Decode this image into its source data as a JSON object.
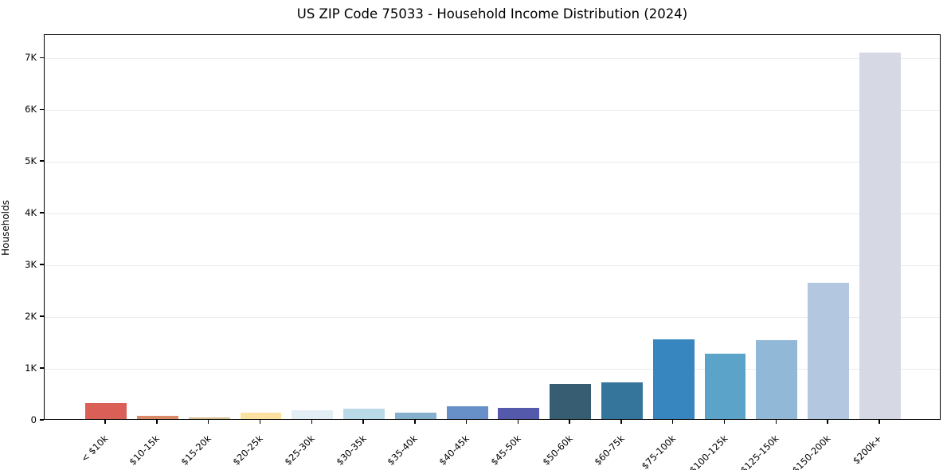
{
  "chart_data": {
    "type": "bar",
    "title": "US ZIP Code 75033 - Household Income Distribution (2024)",
    "xlabel": "",
    "ylabel": "Households",
    "categories": [
      "< $10k",
      "$10-15k",
      "$15-20k",
      "$20-25k",
      "$25-30k",
      "$30-35k",
      "$35-40k",
      "$40-45k",
      "$45-50k",
      "$50-60k",
      "$60-75k",
      "$75-100k",
      "$100-125k",
      "$125-150k",
      "$150-200k",
      "$200k+"
    ],
    "values": [
      305,
      55,
      35,
      130,
      175,
      205,
      130,
      245,
      210,
      675,
      705,
      1540,
      1270,
      1525,
      2630,
      7080
    ],
    "bar_colors": [
      "#d95f57",
      "#da8a68",
      "#d9bd93",
      "#fbe2a0",
      "#e3eef4",
      "#b9dbe8",
      "#86aecd",
      "#6890c8",
      "#5559ac",
      "#375d73",
      "#36759b",
      "#3786bf",
      "#5ba3c9",
      "#92b8d8",
      "#b4c7e0",
      "#d6d8e4"
    ],
    "ytick_values": [
      0,
      1000,
      2000,
      3000,
      4000,
      5000,
      6000,
      7000
    ],
    "ytick_labels": [
      "0",
      "1K",
      "2K",
      "3K",
      "4K",
      "5K",
      "6K",
      "7K"
    ],
    "ylim": [
      0,
      7450
    ],
    "grid": "horizontal",
    "grid_color": "#ececec",
    "axis_color": "#000000",
    "background": "#ffffff",
    "legend": "none"
  }
}
